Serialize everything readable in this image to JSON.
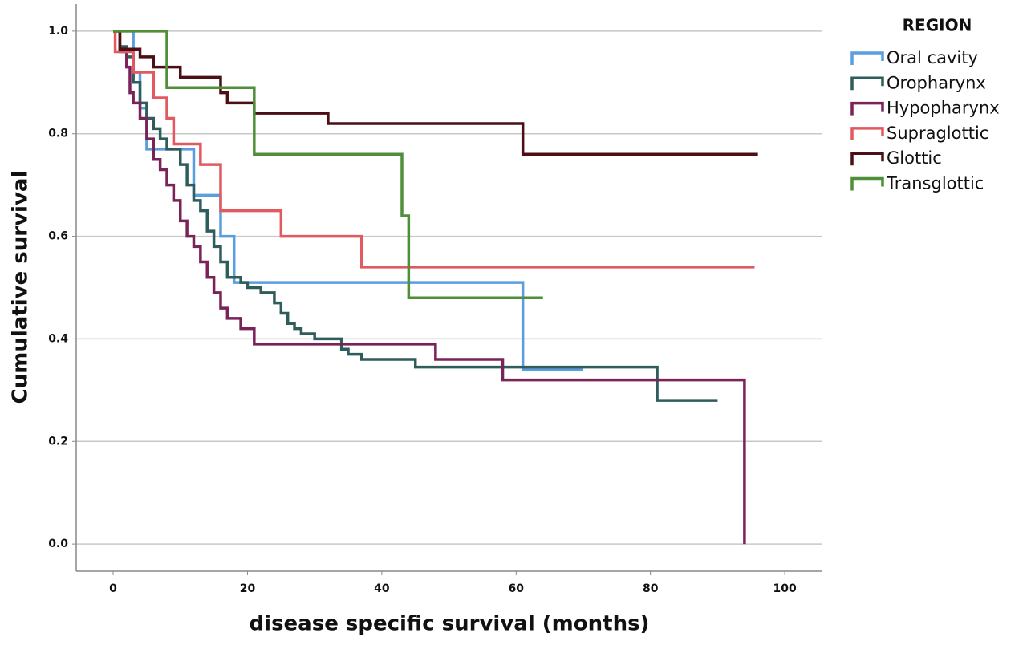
{
  "chart_data": {
    "type": "step",
    "xlabel": "disease specific survival (months)",
    "ylabel": "Cumulative survival",
    "legend_title": "REGION",
    "legend": "upper right outside",
    "grid": true,
    "xlim": [
      -5.5,
      105.6
    ],
    "ylim": [
      -0.053,
      1.053
    ],
    "xticks": [
      0,
      20,
      40,
      60,
      80,
      100
    ],
    "yticks": [
      {
        "value": 0,
        "label": "0.0"
      },
      {
        "value": 0.2,
        "label": "0.2"
      },
      {
        "value": 0.4,
        "label": "0.4"
      },
      {
        "value": 0.6,
        "label": "0.6"
      },
      {
        "value": 0.8,
        "label": "0.8"
      },
      {
        "value": 1,
        "label": "1.0"
      }
    ],
    "series": [
      {
        "name": "Oral cavity",
        "color": "#5a9ee0",
        "x": [
          0,
          3,
          4,
          5,
          12,
          16,
          18,
          61,
          70
        ],
        "values": [
          1,
          0.92,
          0.85,
          0.77,
          0.68,
          0.6,
          0.51,
          0.34,
          0.34
        ]
      },
      {
        "name": "Oropharynx",
        "color": "#2f5d5c",
        "x": [
          0,
          1,
          2,
          3,
          4,
          5,
          6,
          7,
          8,
          10,
          11,
          12,
          13,
          14,
          15,
          16,
          17,
          19,
          20,
          22,
          24,
          25,
          26,
          27,
          28,
          30,
          34,
          35,
          37,
          45,
          81,
          90
        ],
        "values": [
          1,
          0.97,
          0.95,
          0.9,
          0.86,
          0.83,
          0.81,
          0.79,
          0.77,
          0.74,
          0.7,
          0.67,
          0.65,
          0.61,
          0.58,
          0.55,
          0.52,
          0.51,
          0.5,
          0.49,
          0.47,
          0.45,
          0.43,
          0.42,
          0.41,
          0.4,
          0.38,
          0.37,
          0.36,
          0.345,
          0.28,
          0.28
        ]
      },
      {
        "name": "Hypopharynx",
        "color": "#7a2358",
        "x": [
          0,
          1,
          2,
          2.5,
          3,
          4,
          5,
          6,
          7,
          8,
          9,
          10,
          11,
          12,
          13,
          14,
          15,
          16,
          17,
          19,
          21,
          48,
          58,
          94
        ],
        "values": [
          1,
          0.96,
          0.93,
          0.88,
          0.86,
          0.83,
          0.79,
          0.75,
          0.73,
          0.7,
          0.67,
          0.63,
          0.6,
          0.58,
          0.55,
          0.52,
          0.49,
          0.46,
          0.44,
          0.42,
          0.39,
          0.36,
          0.32,
          0
        ]
      },
      {
        "name": "Supraglottic",
        "color": "#e05a60",
        "x": [
          0,
          0.3,
          3,
          6,
          8,
          9,
          13,
          16,
          25,
          37,
          95.5
        ],
        "values": [
          1,
          0.96,
          0.92,
          0.87,
          0.83,
          0.78,
          0.74,
          0.65,
          0.6,
          0.54,
          0.54
        ]
      },
      {
        "name": "Glottic",
        "color": "#4a1015",
        "x": [
          0,
          1,
          4,
          6,
          10,
          16,
          17,
          21,
          32,
          61,
          96
        ],
        "values": [
          1,
          0.965,
          0.95,
          0.93,
          0.91,
          0.88,
          0.86,
          0.84,
          0.82,
          0.76,
          0.76
        ]
      },
      {
        "name": "Transglottic",
        "color": "#4f8f3a",
        "x": [
          0,
          8,
          21,
          43,
          44,
          64
        ],
        "values": [
          1,
          0.89,
          0.76,
          0.64,
          0.48,
          0.48
        ]
      }
    ]
  }
}
